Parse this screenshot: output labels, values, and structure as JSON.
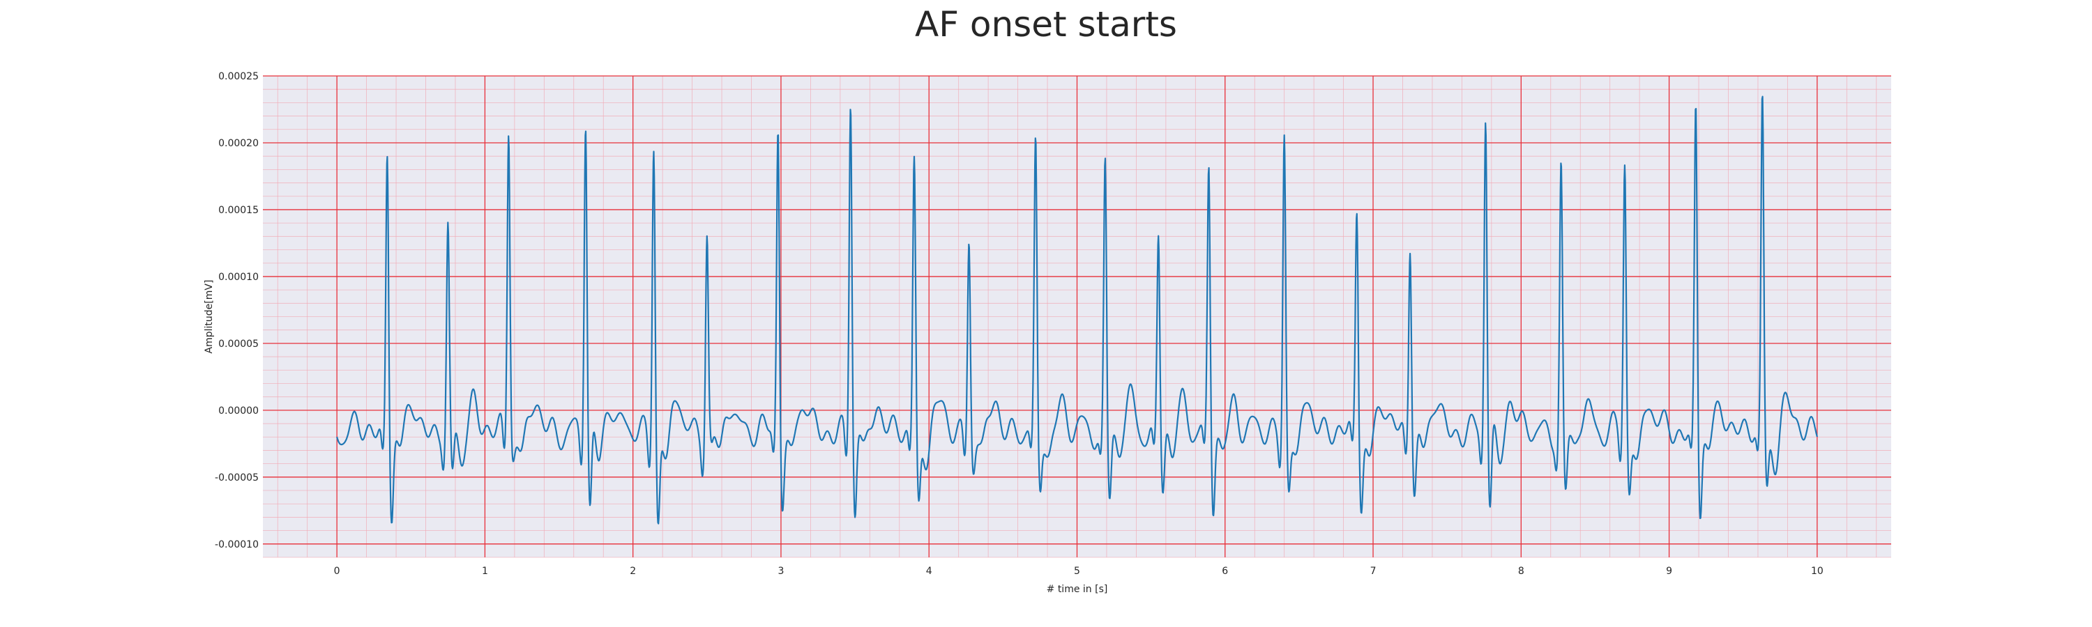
{
  "chart_data": {
    "type": "line",
    "title": "AF onset starts",
    "xlabel": "# time in [s]",
    "ylabel": "Amplitude[mV]",
    "xlim": [
      -0.5,
      10.5
    ],
    "ylim": [
      -0.00011,
      0.00025
    ],
    "x_ticks": [
      "0",
      "1",
      "2",
      "3",
      "4",
      "5",
      "6",
      "7",
      "8",
      "9",
      "10"
    ],
    "y_ticks": [
      "0.00025",
      "0.00020",
      "0.00015",
      "0.00010",
      "0.00005",
      "0.00000",
      "-0.00005",
      "-0.00010"
    ],
    "grid": true,
    "grid_style": "ECG paper: major red grid, minor pink grid",
    "background_color": "#eaeaf2",
    "major_grid_color": "#e8303a",
    "minor_grid_color": "#f2a8b4",
    "series": [
      {
        "color": "#1f77b4",
        "r_peaks": [
          {
            "t": 0.34,
            "r": 0.000198,
            "s": -8e-05
          },
          {
            "t": 0.75,
            "r": 0.000133,
            "s": -6e-05
          },
          {
            "t": 1.16,
            "r": 0.000213,
            "s": -3e-05
          },
          {
            "t": 1.68,
            "r": 0.00022,
            "s": -8.7e-05
          },
          {
            "t": 2.14,
            "r": 0.000202,
            "s": -9.3e-05
          },
          {
            "t": 2.5,
            "r": 0.000133,
            "s": -3e-05
          },
          {
            "t": 2.98,
            "r": 0.000213,
            "s": -6.8e-05
          },
          {
            "t": 3.47,
            "r": 0.000235,
            "s": -8.5e-05
          },
          {
            "t": 3.9,
            "r": 0.000185,
            "s": -7.2e-05
          },
          {
            "t": 4.27,
            "r": 0.000132,
            "s": -4e-05
          },
          {
            "t": 4.72,
            "r": 0.000193,
            "s": -6.3e-05
          },
          {
            "t": 5.19,
            "r": 0.000187,
            "s": -6.8e-05
          },
          {
            "t": 5.55,
            "r": 0.000131,
            "s": -6.2e-05
          },
          {
            "t": 5.89,
            "r": 0.00018,
            "s": -7.7e-05
          },
          {
            "t": 6.4,
            "r": 0.000207,
            "s": -6.3e-05
          },
          {
            "t": 6.89,
            "r": 0.00015,
            "s": -7.2e-05
          },
          {
            "t": 7.25,
            "r": 0.000131,
            "s": -6e-05
          },
          {
            "t": 7.76,
            "r": 0.000222,
            "s": -8.4e-05
          },
          {
            "t": 8.27,
            "r": 0.000181,
            "s": -6.7e-05
          },
          {
            "t": 8.7,
            "r": 0.000182,
            "s": -6.6e-05
          },
          {
            "t": 9.18,
            "r": 0.000227,
            "s": -8e-05
          },
          {
            "t": 9.63,
            "r": 0.00023,
            "s": -6.3e-05
          }
        ],
        "x_start": 0.0,
        "x_end": 10.0,
        "y_start": -1.5e-05,
        "y_end": -1.5e-05
      }
    ]
  }
}
